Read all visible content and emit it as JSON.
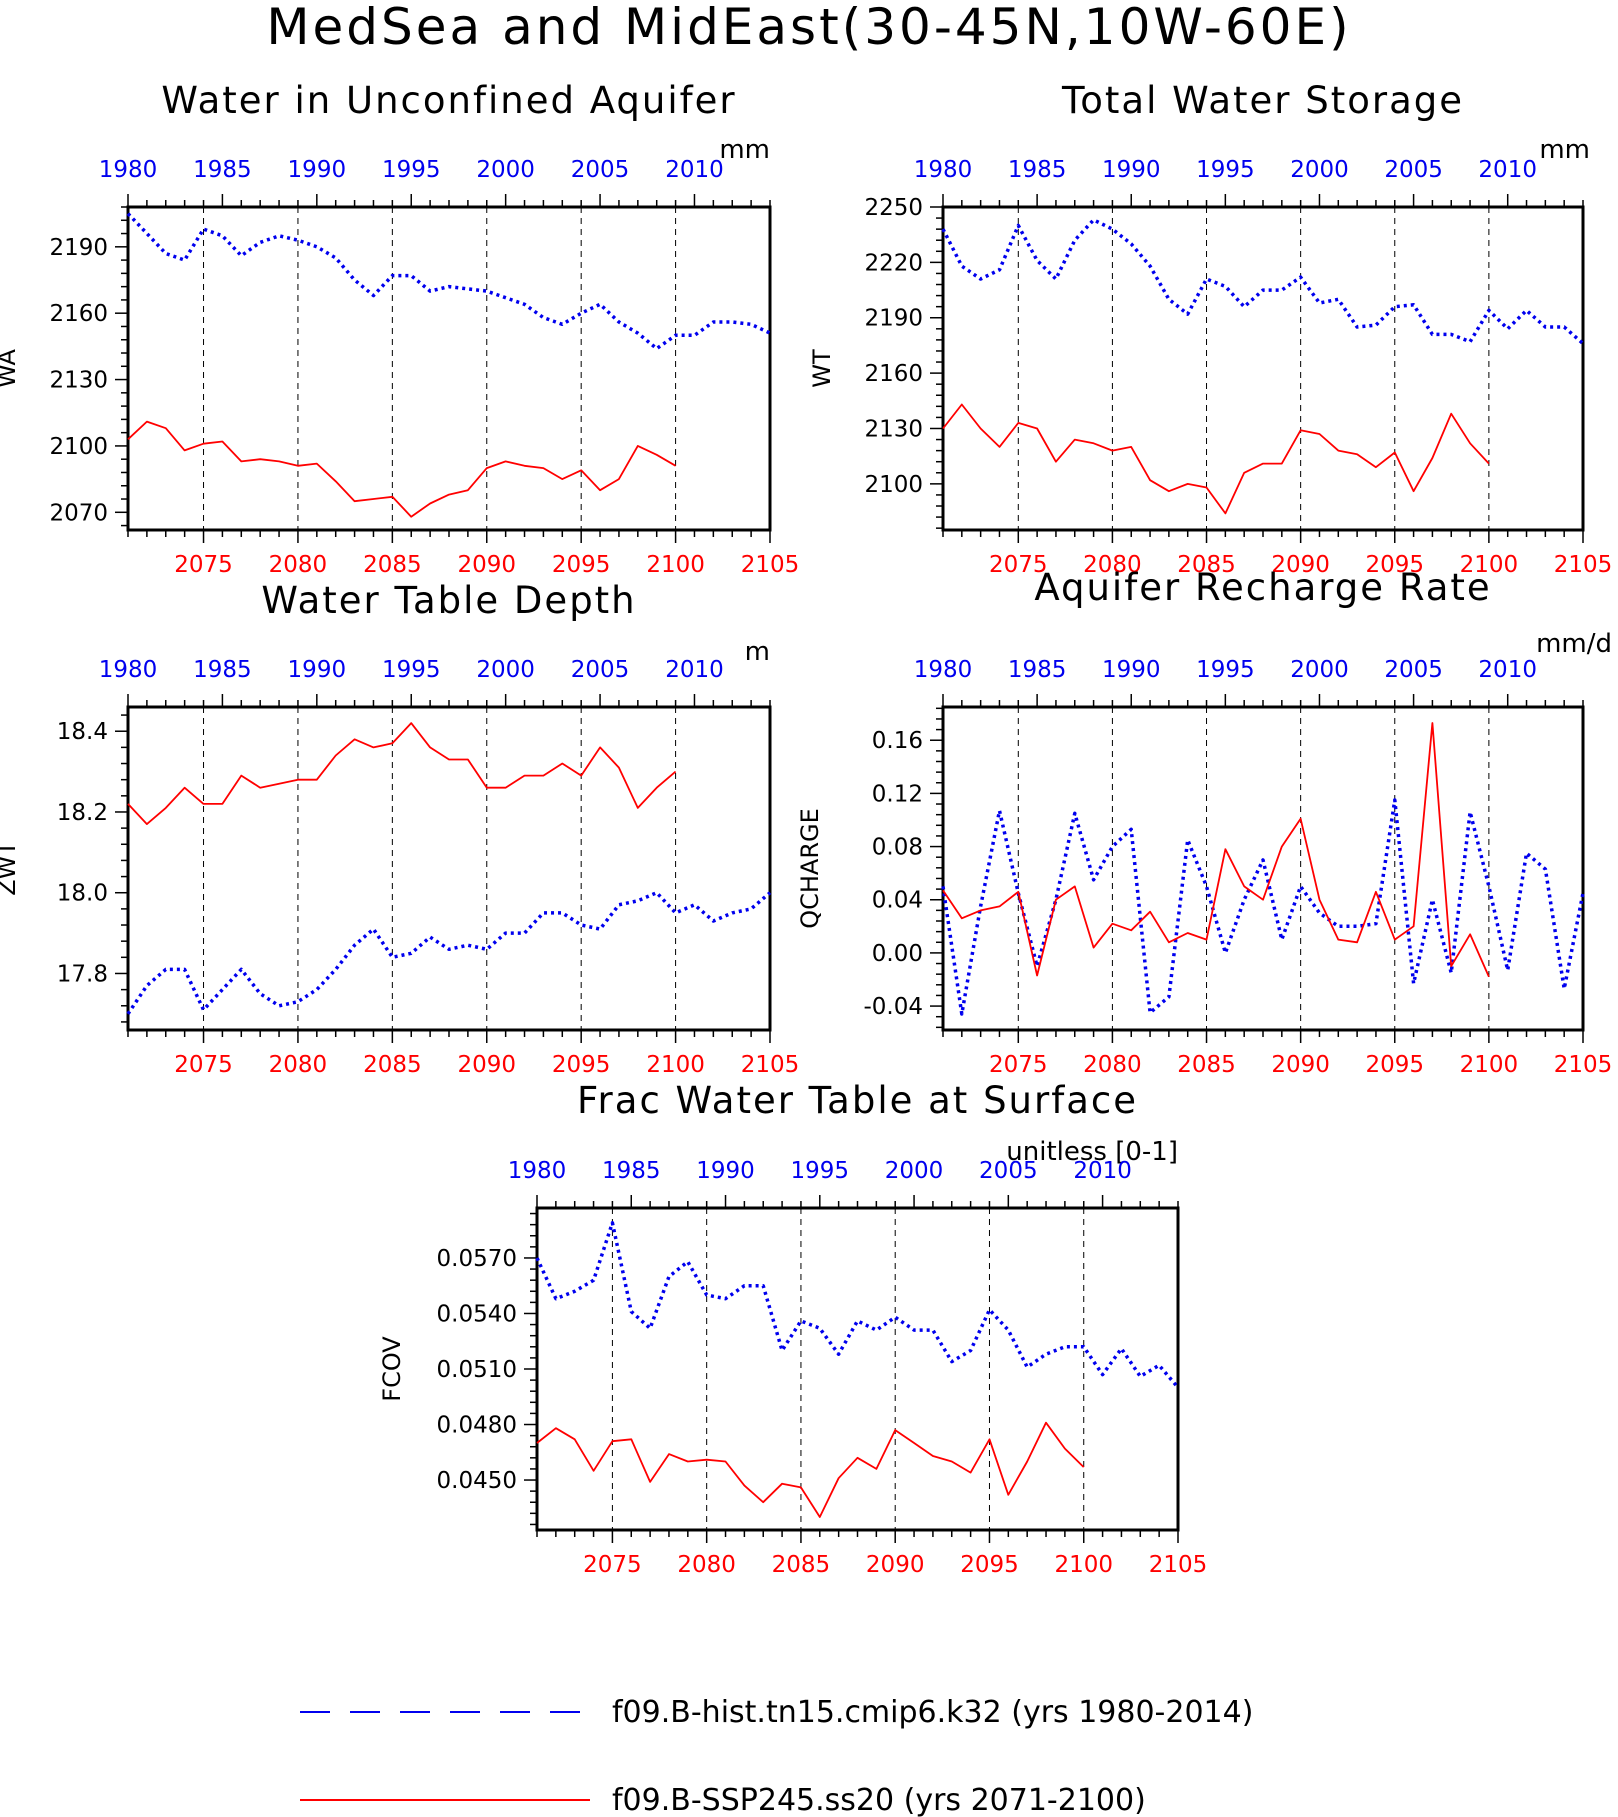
{
  "figure": {
    "title": "MedSea and MidEast(30-45N,10W-60E)"
  },
  "colors": {
    "hist": "#0000ee",
    "ssp": "#ff0000",
    "hist_tick_labels": "#0000ee",
    "ssp_tick_labels": "#ff0000"
  },
  "legend": {
    "entries": [
      {
        "label": "f09.B-hist.tn15.cmip6.k32 (yrs 1980-2014)",
        "style": "dashed",
        "color": "#0000ee"
      },
      {
        "label": "f09.B-SSP245.ss20 (yrs 2071-2100)",
        "style": "solid",
        "color": "#ff0000"
      }
    ]
  },
  "chart_data": [
    {
      "type": "line",
      "title": "Water in Unconfined Aquifer",
      "units": "mm",
      "ylabel": "WA",
      "ylim": [
        2062,
        2208
      ],
      "yticks": [
        2070,
        2100,
        2130,
        2160,
        2190
      ],
      "ytick_labels": [
        "2070",
        "2100",
        "2130",
        "2160",
        "2190"
      ],
      "x_bottom": {
        "range": [
          2071,
          2105
        ],
        "ticks": [
          2075,
          2080,
          2085,
          2090,
          2095,
          2100,
          2105
        ]
      },
      "x_top": {
        "range": [
          1980,
          2014
        ],
        "ticks": [
          1980,
          1985,
          1990,
          1995,
          2000,
          2005,
          2010
        ]
      },
      "series": [
        {
          "name": "f09.B-hist.tn15.cmip6.k32 (yrs 1980-2014)",
          "axis": "top",
          "style": "dotted",
          "x": [
            1980,
            1981,
            1982,
            1983,
            1984,
            1985,
            1986,
            1987,
            1988,
            1989,
            1990,
            1991,
            1992,
            1993,
            1994,
            1995,
            1996,
            1997,
            1998,
            1999,
            2000,
            2001,
            2002,
            2003,
            2004,
            2005,
            2006,
            2007,
            2008,
            2009,
            2010,
            2011,
            2012,
            2013,
            2014
          ],
          "values": [
            2205,
            2196,
            2187,
            2184,
            2198,
            2195,
            2186,
            2192,
            2195,
            2193,
            2190,
            2185,
            2175,
            2168,
            2177,
            2177,
            2170,
            2172,
            2171,
            2170,
            2167,
            2164,
            2158,
            2155,
            2160,
            2164,
            2156,
            2151,
            2144,
            2150,
            2150,
            2156,
            2156,
            2155,
            2151
          ]
        },
        {
          "name": "f09.B-SSP245.ss20 (yrs 2071-2100)",
          "axis": "bottom",
          "style": "solid",
          "x": [
            2071,
            2072,
            2073,
            2074,
            2075,
            2076,
            2077,
            2078,
            2079,
            2080,
            2081,
            2082,
            2083,
            2084,
            2085,
            2086,
            2087,
            2088,
            2089,
            2090,
            2091,
            2092,
            2093,
            2094,
            2095,
            2096,
            2097,
            2098,
            2099,
            2100
          ],
          "values": [
            2103,
            2111,
            2108,
            2098,
            2101,
            2102,
            2093,
            2094,
            2093,
            2091,
            2092,
            2084,
            2075,
            2076,
            2077,
            2068,
            2074,
            2078,
            2080,
            2090,
            2093,
            2091,
            2090,
            2085,
            2089,
            2080,
            2085,
            2100,
            2096,
            2091
          ]
        }
      ]
    },
    {
      "type": "line",
      "title": "Total Water Storage",
      "units": "mm",
      "ylabel": "WT",
      "ylim": [
        2075,
        2250
      ],
      "yticks": [
        2100,
        2130,
        2160,
        2190,
        2220,
        2250
      ],
      "ytick_labels": [
        "2100",
        "2130",
        "2160",
        "2190",
        "2220",
        "2250"
      ],
      "x_bottom": {
        "range": [
          2071,
          2105
        ],
        "ticks": [
          2075,
          2080,
          2085,
          2090,
          2095,
          2100,
          2105
        ]
      },
      "x_top": {
        "range": [
          1980,
          2014
        ],
        "ticks": [
          1980,
          1985,
          1990,
          1995,
          2000,
          2005,
          2010
        ]
      },
      "series": [
        {
          "name": "f09.B-hist.tn15.cmip6.k32 (yrs 1980-2014)",
          "axis": "top",
          "style": "dotted",
          "x": [
            1980,
            1981,
            1982,
            1983,
            1984,
            1985,
            1986,
            1987,
            1988,
            1989,
            1990,
            1991,
            1992,
            1993,
            1994,
            1995,
            1996,
            1997,
            1998,
            1999,
            2000,
            2001,
            2002,
            2003,
            2004,
            2005,
            2006,
            2007,
            2008,
            2009,
            2010,
            2011,
            2012,
            2013,
            2014
          ],
          "values": [
            2238,
            2218,
            2211,
            2216,
            2240,
            2221,
            2211,
            2232,
            2243,
            2238,
            2230,
            2218,
            2200,
            2192,
            2211,
            2207,
            2196,
            2205,
            2205,
            2212,
            2198,
            2200,
            2185,
            2186,
            2196,
            2197,
            2181,
            2181,
            2177,
            2194,
            2184,
            2194,
            2185,
            2185,
            2176
          ]
        },
        {
          "name": "f09.B-SSP245.ss20 (yrs 2071-2100)",
          "axis": "bottom",
          "style": "solid",
          "x": [
            2071,
            2072,
            2073,
            2074,
            2075,
            2076,
            2077,
            2078,
            2079,
            2080,
            2081,
            2082,
            2083,
            2084,
            2085,
            2086,
            2087,
            2088,
            2089,
            2090,
            2091,
            2092,
            2093,
            2094,
            2095,
            2096,
            2097,
            2098,
            2099,
            2100
          ],
          "values": [
            2130,
            2143,
            2130,
            2120,
            2133,
            2130,
            2112,
            2124,
            2122,
            2118,
            2120,
            2102,
            2096,
            2100,
            2098,
            2084,
            2106,
            2111,
            2111,
            2129,
            2127,
            2118,
            2116,
            2109,
            2117,
            2096,
            2114,
            2138,
            2122,
            2111
          ]
        }
      ]
    },
    {
      "type": "line",
      "title": "Water Table Depth",
      "units": "m",
      "ylabel": "ZWT",
      "ylim": [
        17.66,
        18.46
      ],
      "yticks": [
        17.8,
        18.0,
        18.2,
        18.4
      ],
      "ytick_labels": [
        "17.8",
        "18.0",
        "18.2",
        "18.4"
      ],
      "x_bottom": {
        "range": [
          2071,
          2105
        ],
        "ticks": [
          2075,
          2080,
          2085,
          2090,
          2095,
          2100,
          2105
        ]
      },
      "x_top": {
        "range": [
          1980,
          2014
        ],
        "ticks": [
          1980,
          1985,
          1990,
          1995,
          2000,
          2005,
          2010
        ]
      },
      "series": [
        {
          "name": "f09.B-hist.tn15.cmip6.k32 (yrs 1980-2014)",
          "axis": "top",
          "style": "dotted",
          "x": [
            1980,
            1981,
            1982,
            1983,
            1984,
            1985,
            1986,
            1987,
            1988,
            1989,
            1990,
            1991,
            1992,
            1993,
            1994,
            1995,
            1996,
            1997,
            1998,
            1999,
            2000,
            2001,
            2002,
            2003,
            2004,
            2005,
            2006,
            2007,
            2008,
            2009,
            2010,
            2011,
            2012,
            2013,
            2014
          ],
          "values": [
            17.7,
            17.77,
            17.81,
            17.81,
            17.71,
            17.76,
            17.81,
            17.75,
            17.72,
            17.73,
            17.76,
            17.81,
            17.87,
            17.91,
            17.84,
            17.85,
            17.89,
            17.86,
            17.87,
            17.86,
            17.9,
            17.9,
            17.95,
            17.95,
            17.92,
            17.91,
            17.97,
            17.98,
            18.0,
            17.95,
            17.97,
            17.93,
            17.95,
            17.96,
            18.0
          ]
        },
        {
          "name": "f09.B-SSP245.ss20 (yrs 2071-2100)",
          "axis": "bottom",
          "style": "solid",
          "x": [
            2071,
            2072,
            2073,
            2074,
            2075,
            2076,
            2077,
            2078,
            2079,
            2080,
            2081,
            2082,
            2083,
            2084,
            2085,
            2086,
            2087,
            2088,
            2089,
            2090,
            2091,
            2092,
            2093,
            2094,
            2095,
            2096,
            2097,
            2098,
            2099,
            2100
          ],
          "values": [
            18.22,
            18.17,
            18.21,
            18.26,
            18.22,
            18.22,
            18.29,
            18.26,
            18.27,
            18.28,
            18.28,
            18.34,
            18.38,
            18.36,
            18.37,
            18.42,
            18.36,
            18.33,
            18.33,
            18.26,
            18.26,
            18.29,
            18.29,
            18.32,
            18.29,
            18.36,
            18.31,
            18.21,
            18.26,
            18.3
          ]
        }
      ]
    },
    {
      "type": "line",
      "title": "Aquifer Recharge Rate",
      "units": "mm/d",
      "ylabel": "QCHARGE",
      "ylim": [
        -0.058,
        0.185
      ],
      "yticks": [
        -0.04,
        0.0,
        0.04,
        0.08,
        0.12,
        0.16
      ],
      "ytick_labels": [
        "-0.04",
        "0.00",
        "0.04",
        "0.08",
        "0.12",
        "0.16"
      ],
      "x_bottom": {
        "range": [
          2071,
          2105
        ],
        "ticks": [
          2075,
          2080,
          2085,
          2090,
          2095,
          2100,
          2105
        ]
      },
      "x_top": {
        "range": [
          1980,
          2014
        ],
        "ticks": [
          1980,
          1985,
          1990,
          1995,
          2000,
          2005,
          2010
        ]
      },
      "series": [
        {
          "name": "f09.B-hist.tn15.cmip6.k32 (yrs 1980-2014)",
          "axis": "top",
          "style": "dotted",
          "x": [
            1980,
            1981,
            1982,
            1983,
            1984,
            1985,
            1986,
            1987,
            1988,
            1989,
            1990,
            1991,
            1992,
            1993,
            1994,
            1995,
            1996,
            1997,
            1998,
            1999,
            2000,
            2001,
            2002,
            2003,
            2004,
            2005,
            2006,
            2007,
            2008,
            2009,
            2010,
            2011,
            2012,
            2013,
            2014
          ],
          "values": [
            0.05,
            -0.046,
            0.035,
            0.107,
            0.045,
            -0.01,
            0.04,
            0.105,
            0.055,
            0.08,
            0.093,
            -0.045,
            -0.033,
            0.085,
            0.05,
            0.0,
            0.04,
            0.07,
            0.01,
            0.05,
            0.03,
            0.02,
            0.02,
            0.022,
            0.115,
            -0.023,
            0.04,
            -0.015,
            0.106,
            0.05,
            -0.013,
            0.075,
            0.063,
            -0.027,
            0.045
          ]
        },
        {
          "name": "f09.B-SSP245.ss20 (yrs 2071-2100)",
          "axis": "bottom",
          "style": "solid",
          "x": [
            2071,
            2072,
            2073,
            2074,
            2075,
            2076,
            2077,
            2078,
            2079,
            2080,
            2081,
            2082,
            2083,
            2084,
            2085,
            2086,
            2087,
            2088,
            2089,
            2090,
            2091,
            2092,
            2093,
            2094,
            2095,
            2096,
            2097,
            2098,
            2099,
            2100
          ],
          "values": [
            0.047,
            0.026,
            0.032,
            0.035,
            0.046,
            -0.017,
            0.04,
            0.05,
            0.004,
            0.022,
            0.017,
            0.031,
            0.008,
            0.015,
            0.01,
            0.078,
            0.05,
            0.04,
            0.08,
            0.101,
            0.04,
            0.01,
            0.008,
            0.046,
            0.01,
            0.02,
            0.173,
            -0.01,
            0.014,
            -0.018
          ]
        }
      ]
    },
    {
      "type": "line",
      "title": "Frac Water Table at Surface",
      "units": "unitless [0-1]",
      "ylabel": "FCOV",
      "ylim": [
        0.0423,
        0.0597
      ],
      "yticks": [
        0.045,
        0.048,
        0.051,
        0.054,
        0.057
      ],
      "ytick_labels": [
        "0.0450",
        "0.0480",
        "0.0510",
        "0.0540",
        "0.0570"
      ],
      "x_bottom": {
        "range": [
          2071,
          2105
        ],
        "ticks": [
          2075,
          2080,
          2085,
          2090,
          2095,
          2100,
          2105
        ]
      },
      "x_top": {
        "range": [
          1980,
          2014
        ],
        "ticks": [
          1980,
          1985,
          1990,
          1995,
          2000,
          2005,
          2010
        ]
      },
      "series": [
        {
          "name": "f09.B-hist.tn15.cmip6.k32 (yrs 1980-2014)",
          "axis": "top",
          "style": "dotted",
          "x": [
            1980,
            1981,
            1982,
            1983,
            1984,
            1985,
            1986,
            1987,
            1988,
            1989,
            1990,
            1991,
            1992,
            1993,
            1994,
            1995,
            1996,
            1997,
            1998,
            1999,
            2000,
            2001,
            2002,
            2003,
            2004,
            2005,
            2006,
            2007,
            2008,
            2009,
            2010,
            2011,
            2012,
            2013,
            2014
          ],
          "values": [
            0.057,
            0.0548,
            0.0552,
            0.0558,
            0.0589,
            0.0541,
            0.0532,
            0.056,
            0.0568,
            0.055,
            0.0548,
            0.0555,
            0.0555,
            0.052,
            0.0536,
            0.0532,
            0.0518,
            0.0536,
            0.0531,
            0.0538,
            0.0531,
            0.0531,
            0.0514,
            0.052,
            0.0542,
            0.0531,
            0.0511,
            0.0518,
            0.0522,
            0.0522,
            0.0507,
            0.0521,
            0.0506,
            0.0512,
            0.05
          ]
        },
        {
          "name": "f09.B-SSP245.ss20 (yrs 2071-2100)",
          "axis": "bottom",
          "style": "solid",
          "x": [
            2071,
            2072,
            2073,
            2074,
            2075,
            2076,
            2077,
            2078,
            2079,
            2080,
            2081,
            2082,
            2083,
            2084,
            2085,
            2086,
            2087,
            2088,
            2089,
            2090,
            2091,
            2092,
            2093,
            2094,
            2095,
            2096,
            2097,
            2098,
            2099,
            2100
          ],
          "values": [
            0.047,
            0.0478,
            0.0472,
            0.0455,
            0.0471,
            0.0472,
            0.0449,
            0.0464,
            0.046,
            0.0461,
            0.046,
            0.0447,
            0.0438,
            0.0448,
            0.0446,
            0.043,
            0.0451,
            0.0462,
            0.0456,
            0.0477,
            0.047,
            0.0463,
            0.046,
            0.0454,
            0.0472,
            0.0442,
            0.046,
            0.0481,
            0.0467,
            0.0457
          ]
        }
      ]
    }
  ]
}
